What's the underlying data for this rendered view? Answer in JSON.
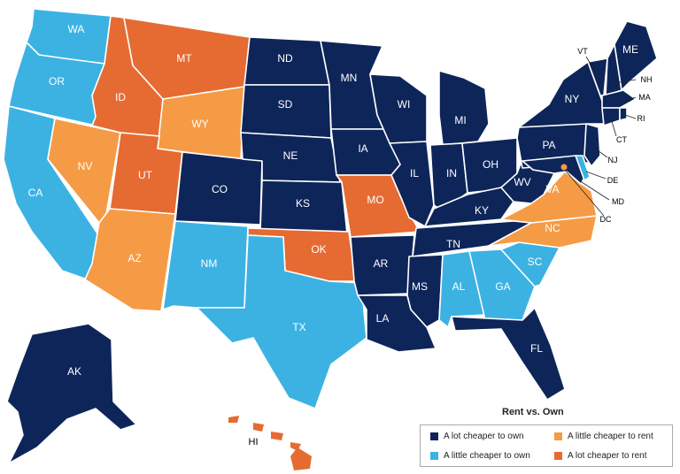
{
  "colors": {
    "lot_own": "#0e2559",
    "little_own": "#3cb2e3",
    "little_rent": "#f59b45",
    "lot_rent": "#e56b32"
  },
  "legend": {
    "title": "Rent vs. Own",
    "items": [
      {
        "label": "A lot cheaper to own",
        "category": "lot_own"
      },
      {
        "label": "A little cheaper to own",
        "category": "little_own"
      },
      {
        "label": "A little cheaper to rent",
        "category": "little_rent"
      },
      {
        "label": "A lot cheaper to rent",
        "category": "lot_rent"
      }
    ]
  },
  "states": {
    "WA": "little_own",
    "OR": "little_own",
    "CA": "little_own",
    "NV": "little_rent",
    "ID": "lot_rent",
    "MT": "lot_rent",
    "WY": "little_rent",
    "UT": "lot_rent",
    "AZ": "little_rent",
    "CO": "lot_own",
    "NM": "little_own",
    "ND": "lot_own",
    "SD": "lot_own",
    "NE": "lot_own",
    "KS": "lot_own",
    "OK": "lot_rent",
    "TX": "little_own",
    "MN": "lot_own",
    "IA": "lot_own",
    "MO": "lot_rent",
    "AR": "lot_own",
    "LA": "lot_own",
    "WI": "lot_own",
    "IL": "lot_own",
    "MI": "lot_own",
    "IN": "lot_own",
    "OH": "lot_own",
    "KY": "lot_own",
    "TN": "lot_own",
    "MS": "lot_own",
    "AL": "little_own",
    "GA": "little_own",
    "FL": "lot_own",
    "SC": "little_own",
    "NC": "little_rent",
    "VA": "little_rent",
    "WV": "lot_own",
    "PA": "lot_own",
    "NY": "lot_own",
    "VT": "lot_own",
    "NH": "lot_own",
    "ME": "lot_own",
    "MA": "lot_own",
    "RI": "lot_own",
    "CT": "lot_own",
    "NJ": "lot_own",
    "DE": "little_own",
    "MD": "lot_own",
    "DC": "little_rent",
    "AK": "lot_own",
    "HI": "lot_rent"
  }
}
